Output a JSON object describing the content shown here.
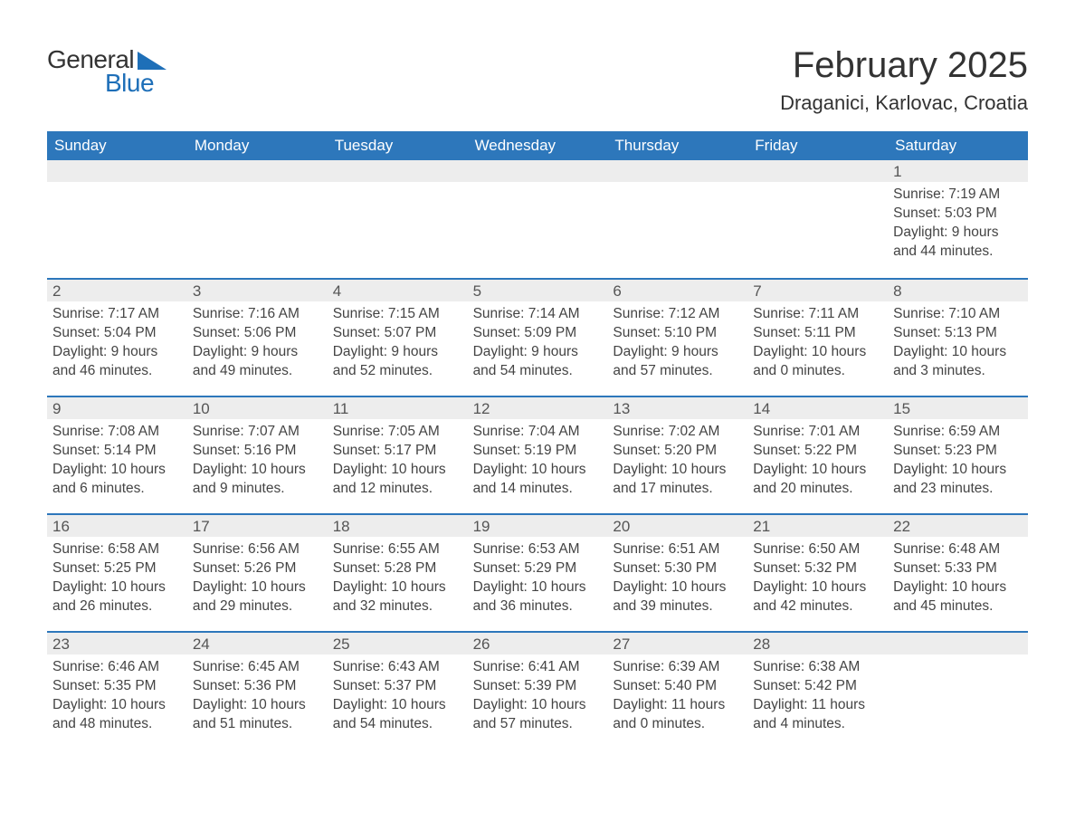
{
  "logo": {
    "line1": "General",
    "line2": "Blue"
  },
  "title": "February 2025",
  "location": "Draganici, Karlovac, Croatia",
  "colors": {
    "header_bg": "#2d77bb",
    "header_text": "#ffffff",
    "daynum_bg": "#ededed",
    "body_text": "#444444",
    "accent": "#1e6fb8"
  },
  "typography": {
    "title_fontsize": 40,
    "location_fontsize": 22,
    "dayheader_fontsize": 17,
    "body_fontsize": 15.5
  },
  "day_names": [
    "Sunday",
    "Monday",
    "Tuesday",
    "Wednesday",
    "Thursday",
    "Friday",
    "Saturday"
  ],
  "weeks": [
    [
      null,
      null,
      null,
      null,
      null,
      null,
      {
        "n": "1",
        "sr": "Sunrise: 7:19 AM",
        "ss": "Sunset: 5:03 PM",
        "d1": "Daylight: 9 hours",
        "d2": "and 44 minutes."
      }
    ],
    [
      {
        "n": "2",
        "sr": "Sunrise: 7:17 AM",
        "ss": "Sunset: 5:04 PM",
        "d1": "Daylight: 9 hours",
        "d2": "and 46 minutes."
      },
      {
        "n": "3",
        "sr": "Sunrise: 7:16 AM",
        "ss": "Sunset: 5:06 PM",
        "d1": "Daylight: 9 hours",
        "d2": "and 49 minutes."
      },
      {
        "n": "4",
        "sr": "Sunrise: 7:15 AM",
        "ss": "Sunset: 5:07 PM",
        "d1": "Daylight: 9 hours",
        "d2": "and 52 minutes."
      },
      {
        "n": "5",
        "sr": "Sunrise: 7:14 AM",
        "ss": "Sunset: 5:09 PM",
        "d1": "Daylight: 9 hours",
        "d2": "and 54 minutes."
      },
      {
        "n": "6",
        "sr": "Sunrise: 7:12 AM",
        "ss": "Sunset: 5:10 PM",
        "d1": "Daylight: 9 hours",
        "d2": "and 57 minutes."
      },
      {
        "n": "7",
        "sr": "Sunrise: 7:11 AM",
        "ss": "Sunset: 5:11 PM",
        "d1": "Daylight: 10 hours",
        "d2": "and 0 minutes."
      },
      {
        "n": "8",
        "sr": "Sunrise: 7:10 AM",
        "ss": "Sunset: 5:13 PM",
        "d1": "Daylight: 10 hours",
        "d2": "and 3 minutes."
      }
    ],
    [
      {
        "n": "9",
        "sr": "Sunrise: 7:08 AM",
        "ss": "Sunset: 5:14 PM",
        "d1": "Daylight: 10 hours",
        "d2": "and 6 minutes."
      },
      {
        "n": "10",
        "sr": "Sunrise: 7:07 AM",
        "ss": "Sunset: 5:16 PM",
        "d1": "Daylight: 10 hours",
        "d2": "and 9 minutes."
      },
      {
        "n": "11",
        "sr": "Sunrise: 7:05 AM",
        "ss": "Sunset: 5:17 PM",
        "d1": "Daylight: 10 hours",
        "d2": "and 12 minutes."
      },
      {
        "n": "12",
        "sr": "Sunrise: 7:04 AM",
        "ss": "Sunset: 5:19 PM",
        "d1": "Daylight: 10 hours",
        "d2": "and 14 minutes."
      },
      {
        "n": "13",
        "sr": "Sunrise: 7:02 AM",
        "ss": "Sunset: 5:20 PM",
        "d1": "Daylight: 10 hours",
        "d2": "and 17 minutes."
      },
      {
        "n": "14",
        "sr": "Sunrise: 7:01 AM",
        "ss": "Sunset: 5:22 PM",
        "d1": "Daylight: 10 hours",
        "d2": "and 20 minutes."
      },
      {
        "n": "15",
        "sr": "Sunrise: 6:59 AM",
        "ss": "Sunset: 5:23 PM",
        "d1": "Daylight: 10 hours",
        "d2": "and 23 minutes."
      }
    ],
    [
      {
        "n": "16",
        "sr": "Sunrise: 6:58 AM",
        "ss": "Sunset: 5:25 PM",
        "d1": "Daylight: 10 hours",
        "d2": "and 26 minutes."
      },
      {
        "n": "17",
        "sr": "Sunrise: 6:56 AM",
        "ss": "Sunset: 5:26 PM",
        "d1": "Daylight: 10 hours",
        "d2": "and 29 minutes."
      },
      {
        "n": "18",
        "sr": "Sunrise: 6:55 AM",
        "ss": "Sunset: 5:28 PM",
        "d1": "Daylight: 10 hours",
        "d2": "and 32 minutes."
      },
      {
        "n": "19",
        "sr": "Sunrise: 6:53 AM",
        "ss": "Sunset: 5:29 PM",
        "d1": "Daylight: 10 hours",
        "d2": "and 36 minutes."
      },
      {
        "n": "20",
        "sr": "Sunrise: 6:51 AM",
        "ss": "Sunset: 5:30 PM",
        "d1": "Daylight: 10 hours",
        "d2": "and 39 minutes."
      },
      {
        "n": "21",
        "sr": "Sunrise: 6:50 AM",
        "ss": "Sunset: 5:32 PM",
        "d1": "Daylight: 10 hours",
        "d2": "and 42 minutes."
      },
      {
        "n": "22",
        "sr": "Sunrise: 6:48 AM",
        "ss": "Sunset: 5:33 PM",
        "d1": "Daylight: 10 hours",
        "d2": "and 45 minutes."
      }
    ],
    [
      {
        "n": "23",
        "sr": "Sunrise: 6:46 AM",
        "ss": "Sunset: 5:35 PM",
        "d1": "Daylight: 10 hours",
        "d2": "and 48 minutes."
      },
      {
        "n": "24",
        "sr": "Sunrise: 6:45 AM",
        "ss": "Sunset: 5:36 PM",
        "d1": "Daylight: 10 hours",
        "d2": "and 51 minutes."
      },
      {
        "n": "25",
        "sr": "Sunrise: 6:43 AM",
        "ss": "Sunset: 5:37 PM",
        "d1": "Daylight: 10 hours",
        "d2": "and 54 minutes."
      },
      {
        "n": "26",
        "sr": "Sunrise: 6:41 AM",
        "ss": "Sunset: 5:39 PM",
        "d1": "Daylight: 10 hours",
        "d2": "and 57 minutes."
      },
      {
        "n": "27",
        "sr": "Sunrise: 6:39 AM",
        "ss": "Sunset: 5:40 PM",
        "d1": "Daylight: 11 hours",
        "d2": "and 0 minutes."
      },
      {
        "n": "28",
        "sr": "Sunrise: 6:38 AM",
        "ss": "Sunset: 5:42 PM",
        "d1": "Daylight: 11 hours",
        "d2": "and 4 minutes."
      },
      null
    ]
  ]
}
